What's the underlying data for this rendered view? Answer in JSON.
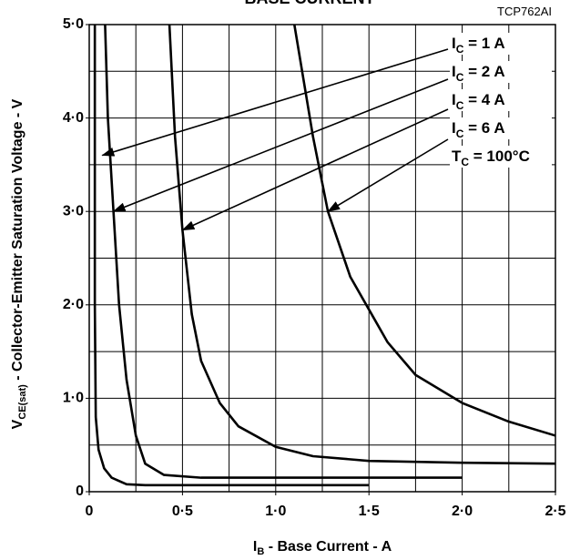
{
  "chart_data": {
    "type": "line",
    "title": "BASE CURRENT",
    "code": "TCP762AI",
    "x_label": {
      "symbol": "I",
      "sub": "B",
      "text": " - Base Current - A"
    },
    "y_label": {
      "symbol": "V",
      "sub": "CE(sat)",
      "text": " - Collector-Emitter Saturation Voltage - V"
    },
    "xlim": [
      0,
      2.5
    ],
    "ylim": [
      0,
      5
    ],
    "xticks": [
      0,
      {
        "value": 0.5,
        "label": "0·5"
      },
      {
        "value": 1,
        "label": "1·0"
      },
      {
        "value": 1.5,
        "label": "1·5"
      },
      {
        "value": 2,
        "label": "2·0"
      },
      {
        "value": 2.5,
        "label": "2·5"
      }
    ],
    "yticks": [
      0,
      {
        "value": 1,
        "label": "1·0"
      },
      {
        "value": 2,
        "label": "2·0"
      },
      {
        "value": 3,
        "label": "3·0"
      },
      {
        "value": 4,
        "label": "4·0"
      },
      {
        "value": 5,
        "label": "5·0"
      }
    ],
    "xgrid": [
      0.25,
      0.5,
      0.75,
      1,
      1.25,
      1.5,
      1.75,
      2,
      2.25
    ],
    "ygrid": [
      0.5,
      1,
      1.5,
      2,
      2.5,
      3,
      3.5,
      4,
      4.5
    ],
    "grid": true,
    "color": "#000000",
    "series": [
      {
        "x": [
          0.03,
          0.03,
          0.035,
          0.05,
          0.08,
          0.12,
          0.2,
          0.3,
          1.5
        ],
        "values": [
          5.0,
          2.0,
          0.8,
          0.45,
          0.25,
          0.15,
          0.08,
          0.07,
          0.07
        ]
      },
      {
        "x": [
          0.085,
          0.1,
          0.13,
          0.16,
          0.2,
          0.25,
          0.3,
          0.4,
          0.6,
          2.0
        ],
        "values": [
          5.0,
          4.0,
          3.0,
          2.0,
          1.2,
          0.6,
          0.3,
          0.18,
          0.15,
          0.15
        ]
      },
      {
        "x": [
          0.43,
          0.46,
          0.5,
          0.55,
          0.6,
          0.7,
          0.8,
          1.0,
          1.2,
          1.5,
          2.0,
          2.5
        ],
        "values": [
          5.0,
          3.8,
          2.8,
          1.9,
          1.4,
          0.95,
          0.7,
          0.48,
          0.38,
          0.33,
          0.31,
          0.3
        ]
      },
      {
        "x": [
          1.1,
          1.2,
          1.28,
          1.4,
          1.5,
          1.6,
          1.75,
          2.0,
          2.25,
          2.5
        ],
        "values": [
          5.0,
          3.8,
          3.0,
          2.3,
          1.95,
          1.6,
          1.25,
          0.95,
          0.75,
          0.6
        ]
      }
    ],
    "annotations": [
      {
        "symbol": "I",
        "sub": "C",
        "text": " = 1 A",
        "x": 0.07,
        "y": 3.6
      },
      {
        "symbol": "I",
        "sub": "C",
        "text": " = 2 A",
        "x": 0.13,
        "y": 3.0
      },
      {
        "symbol": "I",
        "sub": "C",
        "text": " = 4 A",
        "x": 0.5,
        "y": 2.8
      },
      {
        "symbol": "I",
        "sub": "C",
        "text": " = 6 A",
        "x": 1.28,
        "y": 3.0
      },
      {
        "symbol": "T",
        "sub": "C",
        "text": " = 100°C"
      }
    ]
  }
}
